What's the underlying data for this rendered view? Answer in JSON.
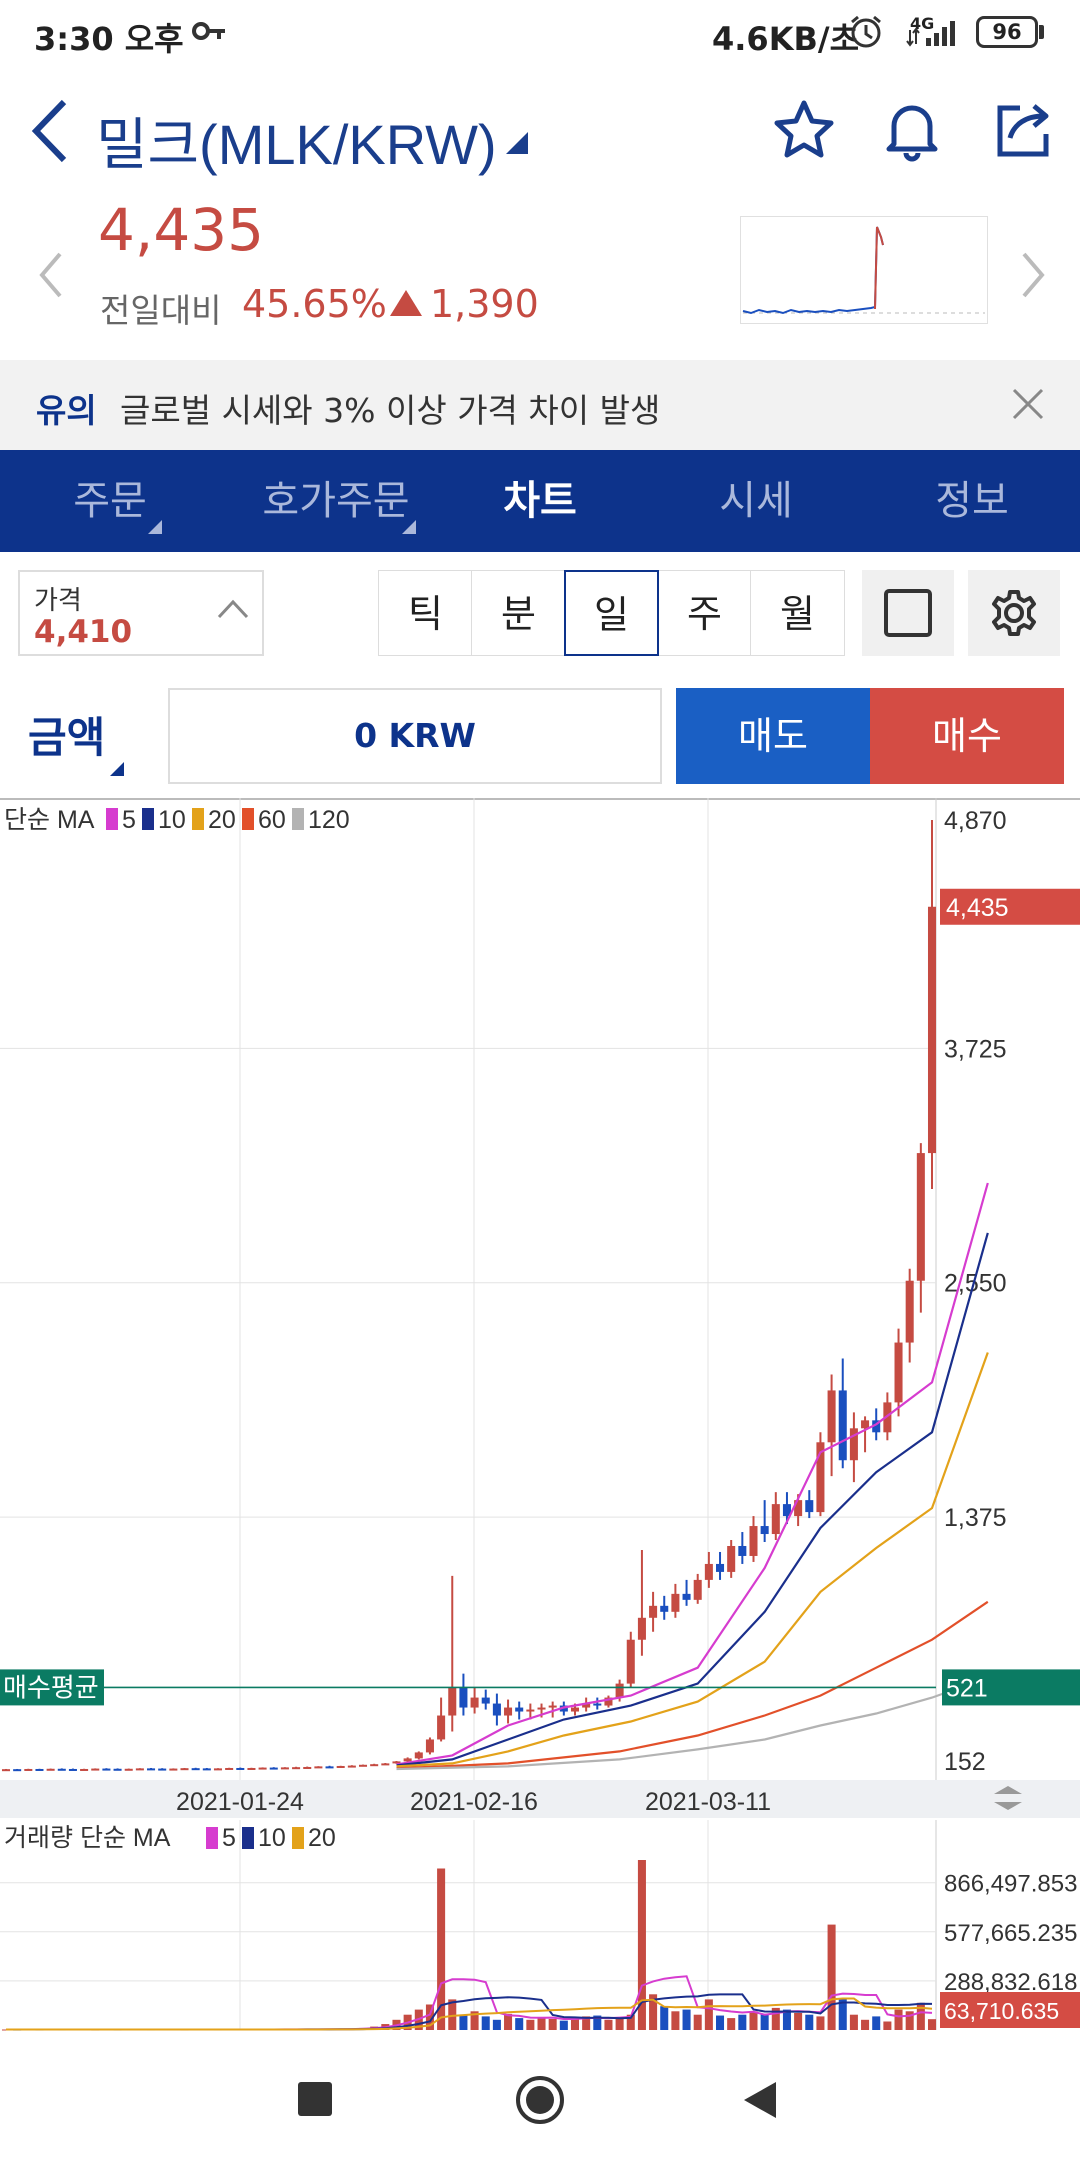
{
  "status_bar": {
    "time": "3:30 오후",
    "network_speed": "4.6KB/초",
    "network_type": "4G",
    "battery": "96"
  },
  "header": {
    "title": "밀크(MLK/KRW)",
    "price": "4,435",
    "change_label": "전일대비",
    "change_pct": "45.65%",
    "change_abs": "1,390"
  },
  "notice": {
    "tag": "유의",
    "text": "글로벌 시세와 3% 이상 가격 차이 발생"
  },
  "tabs": [
    {
      "label": "주문"
    },
    {
      "label": "호가주문"
    },
    {
      "label": "차트"
    },
    {
      "label": "시세"
    },
    {
      "label": "정보"
    }
  ],
  "controls": {
    "price_label": "가격",
    "price_value": "4,410",
    "periods": [
      "틱",
      "분",
      "일",
      "주",
      "월"
    ],
    "selected_period": "일",
    "amount_label": "금액",
    "amount_value": "0 KRW",
    "sell_label": "매도",
    "buy_label": "매수"
  },
  "colors": {
    "brand": "#0d338b",
    "up": "#c54b42",
    "down": "#1a4fbf",
    "avg_line": "#0b7b63",
    "ma5": "#d63ccf",
    "ma10": "#1a2f8c",
    "ma20": "#e3a21a",
    "ma60": "#e2502a",
    "ma120": "#b3b3b3"
  },
  "chart_data": [
    {
      "type": "candlestick",
      "legend_prefix": "단순 MA",
      "legend": [
        "5",
        "10",
        "20",
        "60",
        "120"
      ],
      "y_ticks": [
        "4,870",
        "3,725",
        "2,550",
        "1,375",
        "152"
      ],
      "current_price_label": "4,435",
      "avg_buy_label": "매수평균",
      "avg_buy_value": "521",
      "x_ticks": [
        "2021-01-24",
        "2021-02-16",
        "2021-03-11"
      ],
      "ylim": [
        152,
        4870
      ],
      "candles": [
        [
          110,
          112,
          108,
          111
        ],
        [
          111,
          112,
          109,
          110
        ],
        [
          110,
          113,
          109,
          112
        ],
        [
          112,
          113,
          110,
          111
        ],
        [
          111,
          114,
          110,
          113
        ],
        [
          113,
          115,
          111,
          112
        ],
        [
          112,
          114,
          110,
          111
        ],
        [
          111,
          113,
          109,
          112
        ],
        [
          112,
          115,
          111,
          114
        ],
        [
          114,
          116,
          112,
          113
        ],
        [
          113,
          115,
          111,
          112
        ],
        [
          112,
          114,
          110,
          113
        ],
        [
          113,
          116,
          112,
          115
        ],
        [
          115,
          117,
          113,
          114
        ],
        [
          114,
          116,
          112,
          113
        ],
        [
          113,
          115,
          111,
          114
        ],
        [
          114,
          117,
          113,
          116
        ],
        [
          116,
          118,
          114,
          115
        ],
        [
          115,
          117,
          113,
          114
        ],
        [
          114,
          116,
          112,
          115
        ],
        [
          115,
          118,
          114,
          117
        ],
        [
          117,
          119,
          115,
          116
        ],
        [
          116,
          118,
          114,
          117
        ],
        [
          117,
          120,
          116,
          119
        ],
        [
          119,
          121,
          117,
          118
        ],
        [
          118,
          121,
          117,
          120
        ],
        [
          120,
          123,
          118,
          121
        ],
        [
          121,
          124,
          119,
          122
        ],
        [
          122,
          126,
          120,
          125
        ],
        [
          125,
          128,
          123,
          124
        ],
        [
          124,
          128,
          122,
          127
        ],
        [
          127,
          131,
          125,
          129
        ],
        [
          129,
          134,
          127,
          133
        ],
        [
          133,
          138,
          130,
          136
        ],
        [
          136,
          142,
          133,
          140
        ],
        [
          140,
          152,
          138,
          150
        ],
        [
          150,
          170,
          146,
          165
        ],
        [
          165,
          200,
          160,
          195
        ],
        [
          195,
          270,
          185,
          260
        ],
        [
          260,
          470,
          250,
          380
        ],
        [
          380,
          1080,
          300,
          520
        ],
        [
          520,
          590,
          380,
          420
        ],
        [
          420,
          520,
          390,
          470
        ],
        [
          470,
          510,
          410,
          440
        ],
        [
          440,
          490,
          330,
          380
        ],
        [
          380,
          460,
          340,
          420
        ],
        [
          420,
          450,
          360,
          400
        ],
        [
          400,
          440,
          360,
          410
        ],
        [
          410,
          440,
          370,
          420
        ],
        [
          420,
          450,
          370,
          430
        ],
        [
          430,
          450,
          380,
          400
        ],
        [
          400,
          440,
          380,
          420
        ],
        [
          420,
          470,
          400,
          440
        ],
        [
          440,
          470,
          410,
          430
        ],
        [
          430,
          480,
          420,
          470
        ],
        [
          470,
          560,
          450,
          540
        ],
        [
          540,
          800,
          520,
          760
        ],
        [
          760,
          1210,
          680,
          870
        ],
        [
          870,
          1000,
          800,
          930
        ],
        [
          930,
          980,
          860,
          900
        ],
        [
          900,
          1040,
          870,
          990
        ],
        [
          990,
          1060,
          930,
          960
        ],
        [
          960,
          1090,
          940,
          1060
        ],
        [
          1060,
          1200,
          1020,
          1140
        ],
        [
          1140,
          1200,
          1060,
          1100
        ],
        [
          1100,
          1260,
          1070,
          1230
        ],
        [
          1230,
          1300,
          1140,
          1180
        ],
        [
          1180,
          1380,
          1150,
          1330
        ],
        [
          1330,
          1460,
          1250,
          1290
        ],
        [
          1290,
          1500,
          1260,
          1440
        ],
        [
          1440,
          1500,
          1340,
          1380
        ],
        [
          1380,
          1490,
          1330,
          1460
        ],
        [
          1460,
          1510,
          1370,
          1400
        ],
        [
          1400,
          1800,
          1380,
          1750
        ],
        [
          1750,
          2090,
          1580,
          2010
        ],
        [
          2010,
          2170,
          1620,
          1660
        ],
        [
          1660,
          1900,
          1550,
          1820
        ],
        [
          1820,
          1880,
          1700,
          1860
        ],
        [
          1860,
          1920,
          1760,
          1800
        ],
        [
          1800,
          2000,
          1760,
          1950
        ],
        [
          1950,
          2320,
          1880,
          2250
        ],
        [
          2250,
          2620,
          2150,
          2560
        ],
        [
          2560,
          3250,
          2400,
          3200
        ],
        [
          3200,
          4870,
          3020,
          4435
        ]
      ],
      "ma_series": [
        {
          "name": "5",
          "values": [
            [
              35,
              135
            ],
            [
              40,
              180
            ],
            [
              45,
              330
            ],
            [
              50,
              420
            ],
            [
              56,
              480
            ],
            [
              62,
              620
            ],
            [
              68,
              1120
            ],
            [
              73,
              1700
            ],
            [
              78,
              1840
            ],
            [
              83,
              2050
            ],
            [
              88,
              3050
            ]
          ]
        },
        {
          "name": "10",
          "values": [
            [
              35,
              130
            ],
            [
              40,
              160
            ],
            [
              45,
              260
            ],
            [
              50,
              360
            ],
            [
              56,
              430
            ],
            [
              62,
              540
            ],
            [
              68,
              900
            ],
            [
              73,
              1320
            ],
            [
              78,
              1600
            ],
            [
              83,
              1800
            ],
            [
              88,
              2800
            ]
          ]
        },
        {
          "name": "20",
          "values": [
            [
              35,
              125
            ],
            [
              40,
              140
            ],
            [
              45,
              200
            ],
            [
              50,
              280
            ],
            [
              56,
              350
            ],
            [
              62,
              450
            ],
            [
              68,
              650
            ],
            [
              73,
              1000
            ],
            [
              78,
              1220
            ],
            [
              83,
              1420
            ],
            [
              88,
              2200
            ]
          ]
        },
        {
          "name": "60",
          "values": [
            [
              35,
              115
            ],
            [
              45,
              140
            ],
            [
              55,
              200
            ],
            [
              62,
              280
            ],
            [
              68,
              380
            ],
            [
              73,
              480
            ],
            [
              78,
              620
            ],
            [
              83,
              760
            ],
            [
              88,
              950
            ]
          ]
        },
        {
          "name": "120",
          "values": [
            [
              35,
              112
            ],
            [
              45,
              125
            ],
            [
              55,
              160
            ],
            [
              62,
              210
            ],
            [
              68,
              260
            ],
            [
              73,
              330
            ],
            [
              78,
              390
            ],
            [
              83,
              470
            ],
            [
              88,
              570
            ]
          ]
        }
      ]
    },
    {
      "type": "bar",
      "legend_prefix": "거래량 단순 MA",
      "legend": [
        "5",
        "10",
        "20"
      ],
      "y_ticks": [
        "866,497.853",
        "577,665.235",
        "288,832.618"
      ],
      "current_value_label": "63,710.635",
      "ylim": [
        0,
        1000000
      ],
      "volumes": [
        3000,
        2500,
        3200,
        2800,
        3100,
        2900,
        3300,
        3000,
        2700,
        3100,
        2800,
        3000,
        3200,
        2900,
        3100,
        3000,
        2800,
        3200,
        3100,
        2900,
        3300,
        3000,
        3100,
        3200,
        3400,
        3500,
        3600,
        3800,
        4200,
        5000,
        6000,
        8000,
        12000,
        20000,
        35000,
        60000,
        90000,
        120000,
        150000,
        950000,
        180000,
        90000,
        110000,
        80000,
        60000,
        95000,
        70000,
        60000,
        75000,
        65000,
        55000,
        70000,
        80000,
        85000,
        60000,
        70000,
        90000,
        1000000,
        210000,
        140000,
        110000,
        120000,
        90000,
        180000,
        85000,
        70000,
        90000,
        110000,
        95000,
        130000,
        120000,
        100000,
        90000,
        80000,
        620000,
        180000,
        90000,
        60000,
        80000,
        50000,
        120000,
        110000,
        160000,
        63710
      ]
    }
  ]
}
